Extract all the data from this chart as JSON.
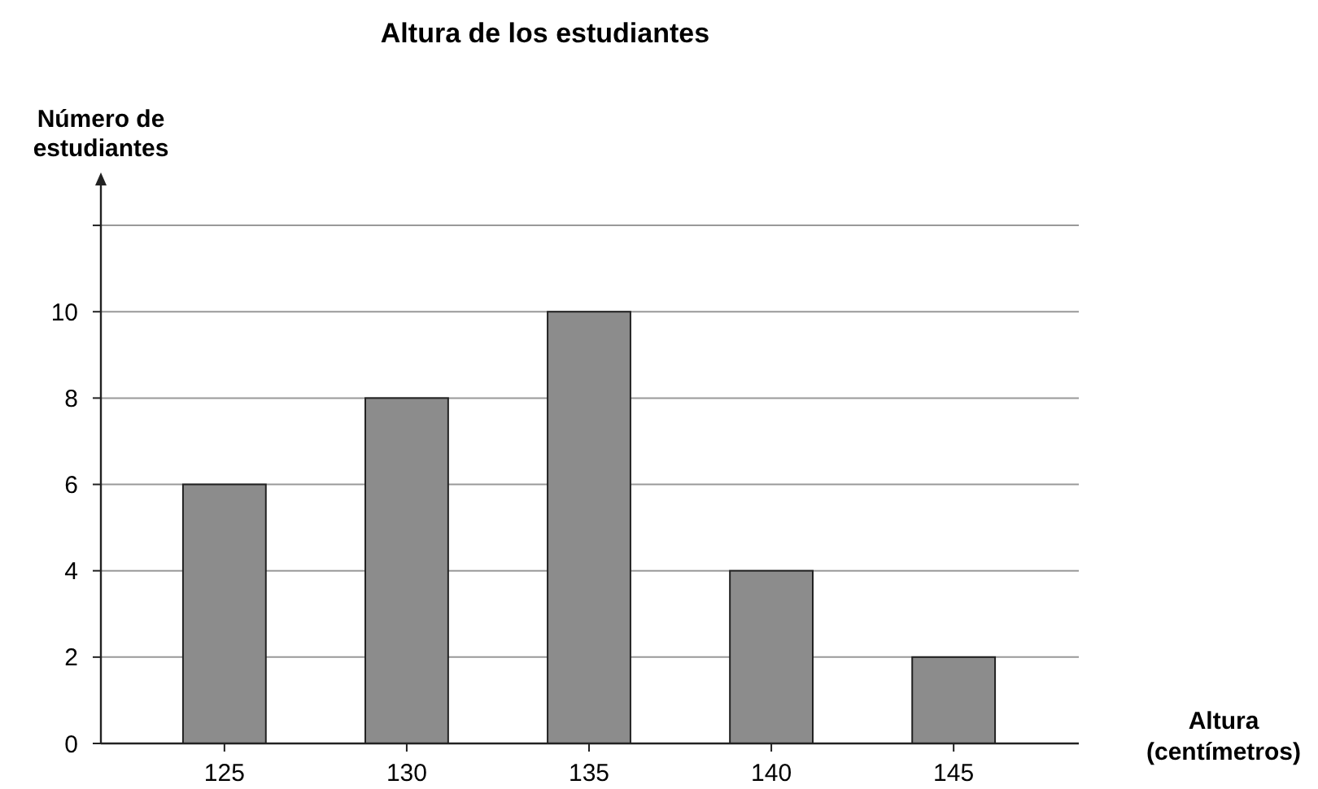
{
  "chart_data": {
    "type": "bar",
    "title": "Altura de los estudiantes",
    "xlabel": "Altura\n(centímetros)",
    "ylabel": "Número de\nestudiantes",
    "categories": [
      "125",
      "130",
      "135",
      "140",
      "145"
    ],
    "values": [
      6,
      8,
      10,
      4,
      2
    ],
    "color": "#8c8c8c",
    "ylim": [
      0,
      13
    ],
    "yticks": [
      0,
      2,
      4,
      6,
      8,
      10,
      {
        "value": 12,
        "label": null
      }
    ],
    "grid": "y"
  }
}
